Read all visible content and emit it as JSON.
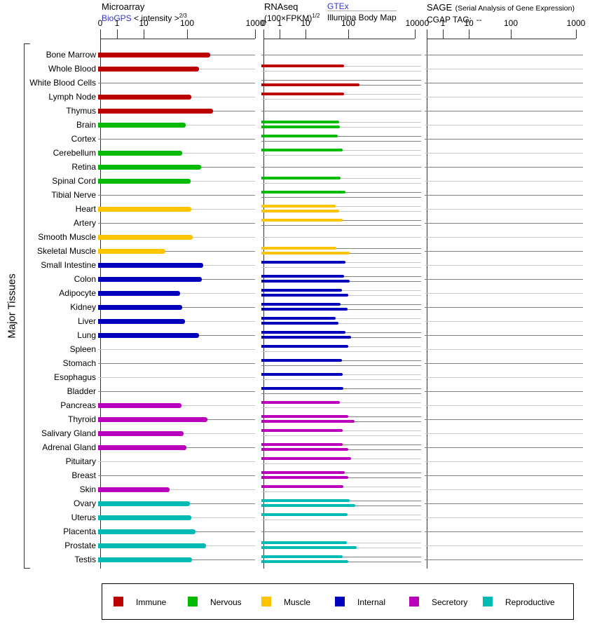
{
  "header": {
    "microarray": {
      "title": "Microarray",
      "source_link": "BioGPS",
      "axis_label": "< intensity >",
      "axis_exponent": "2/3"
    },
    "rnaseq": {
      "title": "RNAseq",
      "unit_label": "(100×FPKM)",
      "unit_exponent": "1/2",
      "source_link": "GTEx",
      "source_2": "Illumina Body Map"
    },
    "sage": {
      "title": "SAGE",
      "subtitle": "(Serial Analysis of Gene Expression)",
      "line2": "CGAP TAG:  --"
    }
  },
  "group_label": "Major Tissues",
  "legend": [
    {
      "label": "Immune",
      "color": "#bb0000"
    },
    {
      "label": "Nervous",
      "color": "#00bb00"
    },
    {
      "label": "Muscle",
      "color": "#ffc400"
    },
    {
      "label": "Internal",
      "color": "#0000bb"
    },
    {
      "label": "Secretory",
      "color": "#bb00bb"
    },
    {
      "label": "Reproductive",
      "color": "#00bbb4"
    }
  ],
  "colors": {
    "immune": "#bb0000",
    "nervous": "#00bb00",
    "muscle": "#ffc400",
    "internal": "#0000bb",
    "secretory": "#bb00bb",
    "reproductive": "#00bbb4",
    "track_dark": "#808080",
    "track_light": "#c8c8c8",
    "link_blue": "#3333cc"
  },
  "chart_data": {
    "type": "bar",
    "orientation": "horizontal",
    "axis": {
      "tick_labels": [
        "0",
        "1",
        "10",
        "100",
        "1000"
      ],
      "tick_values": [
        0,
        1,
        10,
        100,
        1000
      ],
      "scale": "power-log (BioGPS style)"
    },
    "panels": [
      {
        "id": "microarray",
        "series": [
          "BioGPS intensity^(2/3)"
        ]
      },
      {
        "id": "rnaseq",
        "series": [
          "GTEx",
          "Illumina Body Map"
        ]
      },
      {
        "id": "sage",
        "series": [],
        "note": "no data (CGAP TAG: --)"
      }
    ],
    "tissues": [
      {
        "name": "Bone Marrow",
        "category": "immune",
        "microarray": 220,
        "rnaseq_gtex": null,
        "rnaseq_illumina": null
      },
      {
        "name": "Whole Blood",
        "category": "immune",
        "microarray": 150,
        "rnaseq_gtex": 80,
        "rnaseq_illumina": null
      },
      {
        "name": "White Blood Cells",
        "category": "immune",
        "microarray": null,
        "rnaseq_gtex": null,
        "rnaseq_illumina": 145
      },
      {
        "name": "Lymph Node",
        "category": "immune",
        "microarray": 115,
        "rnaseq_gtex": 78,
        "rnaseq_illumina": null
      },
      {
        "name": "Thymus",
        "category": "immune",
        "microarray": 240,
        "rnaseq_gtex": null,
        "rnaseq_illumina": null
      },
      {
        "name": "Brain",
        "category": "nervous",
        "microarray": 93,
        "rnaseq_gtex": 60,
        "rnaseq_illumina": 63
      },
      {
        "name": "Cortex",
        "category": "nervous",
        "microarray": null,
        "rnaseq_gtex": 56,
        "rnaseq_illumina": null
      },
      {
        "name": "Cerebellum",
        "category": "nervous",
        "microarray": 77,
        "rnaseq_gtex": 74,
        "rnaseq_illumina": null
      },
      {
        "name": "Retina",
        "category": "nervous",
        "microarray": 160,
        "rnaseq_gtex": null,
        "rnaseq_illumina": null
      },
      {
        "name": "Spinal Cord",
        "category": "nervous",
        "microarray": 113,
        "rnaseq_gtex": 66,
        "rnaseq_illumina": null
      },
      {
        "name": "Tibial Nerve",
        "category": "nervous",
        "microarray": null,
        "rnaseq_gtex": 85,
        "rnaseq_illumina": null
      },
      {
        "name": "Heart",
        "category": "muscle",
        "microarray": 114,
        "rnaseq_gtex": 49,
        "rnaseq_illumina": 61
      },
      {
        "name": "Artery",
        "category": "muscle",
        "microarray": null,
        "rnaseq_gtex": 73,
        "rnaseq_illumina": null
      },
      {
        "name": "Smooth Muscle",
        "category": "muscle",
        "microarray": 120,
        "rnaseq_gtex": null,
        "rnaseq_illumina": null
      },
      {
        "name": "Skeletal Muscle",
        "category": "muscle",
        "microarray": 31,
        "rnaseq_gtex": 51,
        "rnaseq_illumina": 103
      },
      {
        "name": "Small Intestine",
        "category": "internal",
        "microarray": 172,
        "rnaseq_gtex": 85,
        "rnaseq_illumina": null
      },
      {
        "name": "Colon",
        "category": "internal",
        "microarray": 165,
        "rnaseq_gtex": 78,
        "rnaseq_illumina": 103
      },
      {
        "name": "Adipocyte",
        "category": "internal",
        "microarray": 68,
        "rnaseq_gtex": 70,
        "rnaseq_illumina": 97
      },
      {
        "name": "Kidney",
        "category": "internal",
        "microarray": 77,
        "rnaseq_gtex": 65,
        "rnaseq_illumina": 96
      },
      {
        "name": "Liver",
        "category": "internal",
        "microarray": 90,
        "rnaseq_gtex": 49,
        "rnaseq_illumina": 57
      },
      {
        "name": "Lung",
        "category": "internal",
        "microarray": 150,
        "rnaseq_gtex": 84,
        "rnaseq_illumina": 110
      },
      {
        "name": "Spleen",
        "category": "internal",
        "microarray": null,
        "rnaseq_gtex": 99,
        "rnaseq_illumina": null
      },
      {
        "name": "Stomach",
        "category": "internal",
        "microarray": null,
        "rnaseq_gtex": 69,
        "rnaseq_illumina": null
      },
      {
        "name": "Esophagus",
        "category": "internal",
        "microarray": null,
        "rnaseq_gtex": 72,
        "rnaseq_illumina": null
      },
      {
        "name": "Bladder",
        "category": "internal",
        "microarray": null,
        "rnaseq_gtex": 75,
        "rnaseq_illumina": null
      },
      {
        "name": "Pancreas",
        "category": "secretory",
        "microarray": 75,
        "rnaseq_gtex": 62,
        "rnaseq_illumina": null
      },
      {
        "name": "Thyroid",
        "category": "secretory",
        "microarray": 200,
        "rnaseq_gtex": 99,
        "rnaseq_illumina": 124
      },
      {
        "name": "Salivary Gland",
        "category": "secretory",
        "microarray": 82,
        "rnaseq_gtex": 72,
        "rnaseq_illumina": null
      },
      {
        "name": "Adrenal Gland",
        "category": "secretory",
        "microarray": 97,
        "rnaseq_gtex": 73,
        "rnaseq_illumina": 99
      },
      {
        "name": "Pituitary",
        "category": "secretory",
        "microarray": null,
        "rnaseq_gtex": 110,
        "rnaseq_illumina": null
      },
      {
        "name": "Breast",
        "category": "secretory",
        "microarray": null,
        "rnaseq_gtex": 82,
        "rnaseq_illumina": 100
      },
      {
        "name": "Skin",
        "category": "secretory",
        "microarray": 40,
        "rnaseq_gtex": 75,
        "rnaseq_illumina": null
      },
      {
        "name": "Ovary",
        "category": "reproductive",
        "microarray": 110,
        "rnaseq_gtex": 103,
        "rnaseq_illumina": 125
      },
      {
        "name": "Uterus",
        "category": "reproductive",
        "microarray": 115,
        "rnaseq_gtex": 95,
        "rnaseq_illumina": null
      },
      {
        "name": "Placenta",
        "category": "reproductive",
        "microarray": 133,
        "rnaseq_gtex": null,
        "rnaseq_illumina": null
      },
      {
        "name": "Prostate",
        "category": "reproductive",
        "microarray": 190,
        "rnaseq_gtex": 91,
        "rnaseq_illumina": 134
      },
      {
        "name": "Testis",
        "category": "reproductive",
        "microarray": 117,
        "rnaseq_gtex": 74,
        "rnaseq_illumina": 100
      }
    ]
  }
}
